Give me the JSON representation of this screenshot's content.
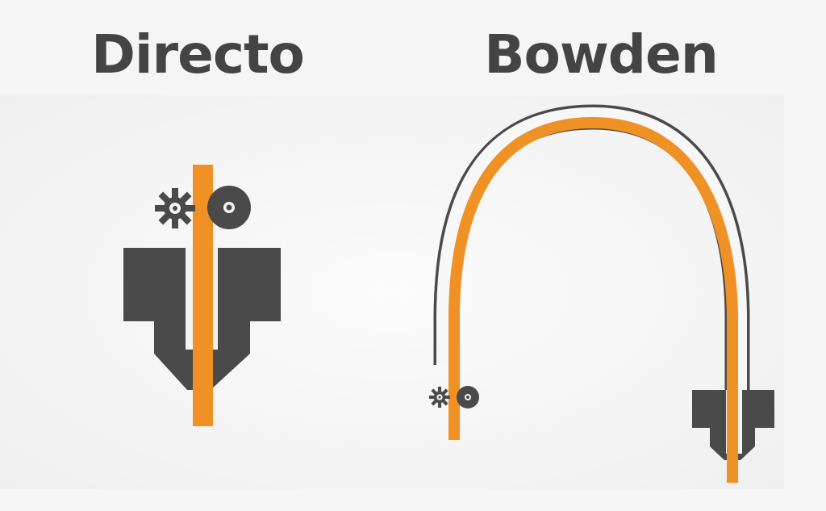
{
  "labels": {
    "direct": "Directo",
    "bowden": "Bowden"
  },
  "colors": {
    "filament": "#ef9125",
    "machine": "#4a4a4a",
    "title": "#444444",
    "background": "#f5f5f5"
  },
  "icons": {
    "drive_gear": "gear-icon",
    "idler": "idler-wheel-icon"
  }
}
